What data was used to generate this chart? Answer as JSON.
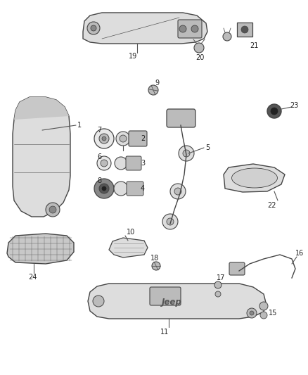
{
  "bg_color": "#ffffff",
  "lc": "#444444",
  "fc_light": "#dddddd",
  "fc_mid": "#bbbbbb",
  "fc_dark": "#888888",
  "fc_darker": "#555555",
  "font_size": 7.0,
  "figw": 4.38,
  "figh": 5.33,
  "dpi": 100
}
